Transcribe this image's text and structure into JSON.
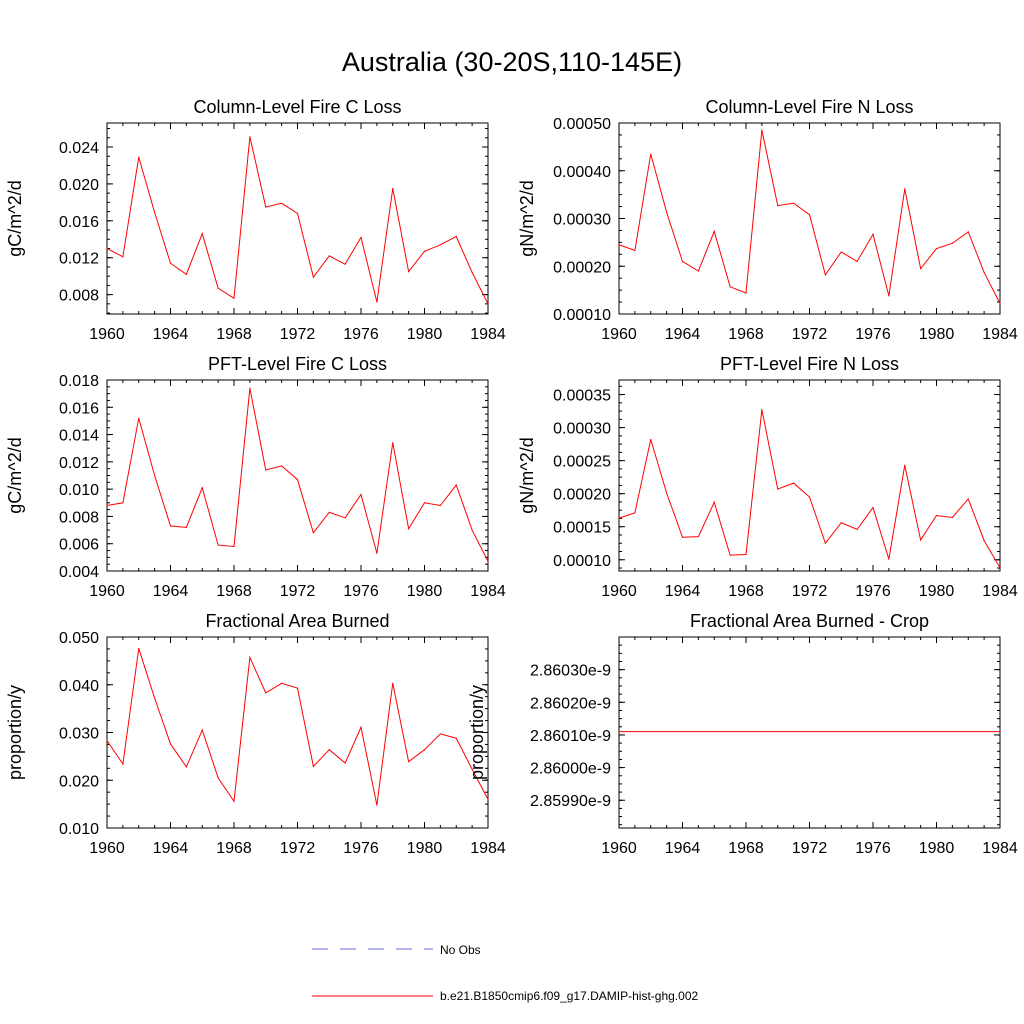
{
  "figure": {
    "title": "Australia (30-20S,110-145E)"
  },
  "legend": {
    "entries": [
      {
        "label": "No Obs",
        "color": "#6a6adf",
        "style": "dashed"
      },
      {
        "label": "b.e21.B1850cmip6.f09_g17.DAMIP-hist-ghg.002",
        "color": "#ff0000",
        "style": "solid"
      }
    ]
  },
  "chart_data": [
    {
      "type": "line",
      "title": "Column-Level Fire C Loss",
      "ylabel": "gC/m^2/d",
      "xlim": [
        1960,
        1984
      ],
      "ylim": [
        0.0059,
        0.0266
      ],
      "xticks": [
        "1960",
        "1964",
        "1968",
        "1972",
        "1976",
        "1980",
        "1984"
      ],
      "yticks": [
        "0.008",
        "0.012",
        "0.016",
        "0.020",
        "0.024"
      ],
      "series": [
        {
          "color": "#ff0000",
          "x": [
            1960,
            1961,
            1962,
            1963,
            1964,
            1965,
            1966,
            1967,
            1968,
            1969,
            1970,
            1971,
            1972,
            1973,
            1974,
            1975,
            1976,
            1977,
            1978,
            1979,
            1980,
            1981,
            1982,
            1983,
            1984
          ],
          "values": [
            0.013,
            0.0121,
            0.0229,
            0.0169,
            0.0114,
            0.0102,
            0.0146,
            0.0087,
            0.0076,
            0.0251,
            0.0175,
            0.0179,
            0.0168,
            0.0099,
            0.0122,
            0.0113,
            0.0142,
            0.0072,
            0.0195,
            0.0105,
            0.0127,
            0.0134,
            0.0143,
            0.0104,
            0.007
          ]
        }
      ]
    },
    {
      "type": "line",
      "title": "Column-Level Fire N Loss",
      "ylabel": "gN/m^2/d",
      "xlim": [
        1960,
        1984
      ],
      "ylim": [
        0.0001,
        0.0005
      ],
      "xticks": [
        "1960",
        "1964",
        "1968",
        "1972",
        "1976",
        "1980",
        "1984"
      ],
      "yticks": [
        "0.00010",
        "0.00020",
        "0.00030",
        "0.00040",
        "0.00050"
      ],
      "series": [
        {
          "color": "#ff0000",
          "x": [
            1960,
            1961,
            1962,
            1963,
            1964,
            1965,
            1966,
            1967,
            1968,
            1969,
            1970,
            1971,
            1972,
            1973,
            1974,
            1975,
            1976,
            1977,
            1978,
            1979,
            1980,
            1981,
            1982,
            1983,
            1984
          ],
          "values": [
            0.000245,
            0.000233,
            0.000435,
            0.000313,
            0.00021,
            0.00019,
            0.000273,
            0.000157,
            0.000144,
            0.000485,
            0.000327,
            0.000332,
            0.000308,
            0.000182,
            0.00023,
            0.00021,
            0.000267,
            0.000138,
            0.000362,
            0.000195,
            0.000237,
            0.000248,
            0.000272,
            0.000187,
            0.000122
          ]
        }
      ]
    },
    {
      "type": "line",
      "title": "PFT-Level Fire C Loss",
      "ylabel": "gC/m^2/d",
      "xlim": [
        1960,
        1984
      ],
      "ylim": [
        0.004,
        0.018
      ],
      "xticks": [
        "1960",
        "1964",
        "1968",
        "1972",
        "1976",
        "1980",
        "1984"
      ],
      "yticks": [
        "0.004",
        "0.006",
        "0.008",
        "0.010",
        "0.012",
        "0.014",
        "0.016",
        "0.018"
      ],
      "series": [
        {
          "color": "#ff0000",
          "x": [
            1960,
            1961,
            1962,
            1963,
            1964,
            1965,
            1966,
            1967,
            1968,
            1969,
            1970,
            1971,
            1972,
            1973,
            1974,
            1975,
            1976,
            1977,
            1978,
            1979,
            1980,
            1981,
            1982,
            1983,
            1984
          ],
          "values": [
            0.0088,
            0.009,
            0.0152,
            0.011,
            0.0073,
            0.0072,
            0.0101,
            0.0059,
            0.0058,
            0.0174,
            0.0114,
            0.0117,
            0.0107,
            0.0068,
            0.0083,
            0.0079,
            0.0096,
            0.0053,
            0.0134,
            0.0071,
            0.009,
            0.0088,
            0.0103,
            0.007,
            0.0047
          ]
        }
      ]
    },
    {
      "type": "line",
      "title": "PFT-Level Fire N Loss",
      "ylabel": "gN/m^2/d",
      "xlim": [
        1960,
        1984
      ],
      "ylim": [
        8.3e-05,
        0.000372
      ],
      "xticks": [
        "1960",
        "1964",
        "1968",
        "1972",
        "1976",
        "1980",
        "1984"
      ],
      "yticks": [
        "0.00010",
        "0.00015",
        "0.00020",
        "0.00025",
        "0.00030",
        "0.00035"
      ],
      "series": [
        {
          "color": "#ff0000",
          "x": [
            1960,
            1961,
            1962,
            1963,
            1964,
            1965,
            1966,
            1967,
            1968,
            1969,
            1970,
            1971,
            1972,
            1973,
            1974,
            1975,
            1976,
            1977,
            1978,
            1979,
            1980,
            1981,
            1982,
            1983,
            1984
          ],
          "values": [
            0.000163,
            0.000171,
            0.000282,
            0.000201,
            0.000134,
            0.000135,
            0.000187,
            0.000107,
            0.000108,
            0.000327,
            0.000207,
            0.000216,
            0.000195,
            0.000125,
            0.000156,
            0.000146,
            0.000179,
            0.000101,
            0.000243,
            0.00013,
            0.000167,
            0.000164,
            0.000192,
            0.000129,
            8.8e-05
          ]
        }
      ]
    },
    {
      "type": "line",
      "title": "Fractional Area Burned",
      "ylabel": "proportion/y",
      "xlim": [
        1960,
        1984
      ],
      "ylim": [
        0.01,
        0.05
      ],
      "xticks": [
        "1960",
        "1964",
        "1968",
        "1972",
        "1976",
        "1980",
        "1984"
      ],
      "yticks": [
        "0.010",
        "0.020",
        "0.030",
        "0.040",
        "0.050"
      ],
      "series": [
        {
          "color": "#ff0000",
          "x": [
            1960,
            1961,
            1962,
            1963,
            1964,
            1965,
            1966,
            1967,
            1968,
            1969,
            1970,
            1971,
            1972,
            1973,
            1974,
            1975,
            1976,
            1977,
            1978,
            1979,
            1980,
            1981,
            1982,
            1983,
            1984
          ],
          "values": [
            0.0283,
            0.0234,
            0.0476,
            0.0372,
            0.0276,
            0.0228,
            0.0305,
            0.0205,
            0.0156,
            0.0457,
            0.0383,
            0.0403,
            0.0393,
            0.0229,
            0.0264,
            0.0236,
            0.0311,
            0.0148,
            0.0403,
            0.0239,
            0.0264,
            0.0297,
            0.0288,
            0.0223,
            0.016
          ]
        }
      ]
    },
    {
      "type": "line",
      "title": "Fractional Area Burned - Crop",
      "ylabel": "proportion/y",
      "xlim": [
        1960,
        1984
      ],
      "ylim": [
        2.859815e-09,
        2.8604e-09
      ],
      "xticks": [
        "1960",
        "1964",
        "1968",
        "1972",
        "1976",
        "1980",
        "1984"
      ],
      "yticks": [
        "2.85990e-9",
        "2.86000e-9",
        "2.86010e-9",
        "2.86020e-9",
        "2.86030e-9"
      ],
      "series": [
        {
          "color": "#ff0000",
          "x": [
            1960,
            1984
          ],
          "values": [
            2.86011e-09,
            2.86011e-09
          ]
        }
      ]
    }
  ]
}
